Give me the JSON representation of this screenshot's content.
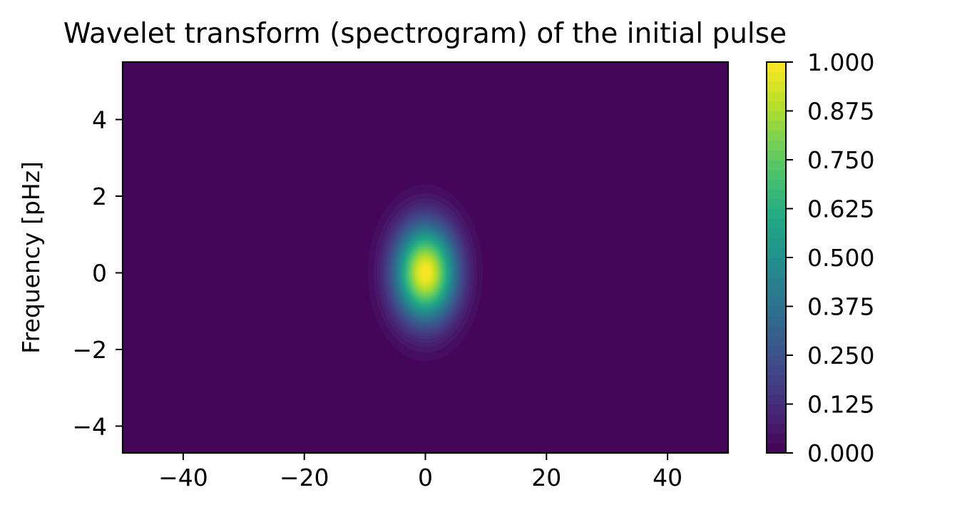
{
  "chart_data": {
    "type": "heatmap",
    "title": "Wavelet transform (spectrogram) of the initial pulse",
    "xlabel": "",
    "ylabel": "Frequency [pHz]",
    "xlim": [
      -50,
      50
    ],
    "ylim": [
      -4.7,
      5.5
    ],
    "xticks": [
      -40,
      -20,
      0,
      20,
      40
    ],
    "yticks": [
      -4,
      -2,
      0,
      2,
      4
    ],
    "grid": false,
    "colormap": "viridis",
    "field": {
      "shape": "2D Gaussian",
      "peak_value": 1.0,
      "center_x": 0,
      "center_y": 0,
      "sigma_x": 3.5,
      "sigma_y": 0.85
    },
    "contour_levels": 40,
    "colorbar": {
      "min": 0.0,
      "max": 1.0,
      "ticks": [
        0.0,
        0.125,
        0.25,
        0.375,
        0.5,
        0.625,
        0.75,
        0.875,
        1.0
      ],
      "tick_labels": [
        "0.000",
        "0.125",
        "0.250",
        "0.375",
        "0.500",
        "0.625",
        "0.750",
        "0.875",
        "1.000"
      ]
    }
  }
}
